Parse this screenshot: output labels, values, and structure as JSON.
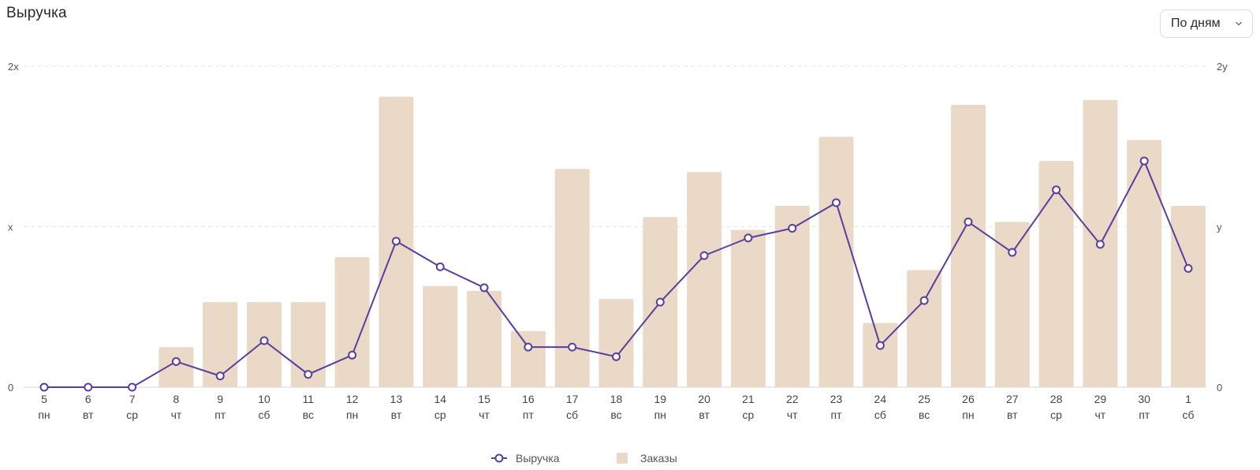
{
  "header": {
    "title": "Выручка",
    "period_select": {
      "value": "По дням"
    }
  },
  "chart_data": {
    "type": "bar",
    "categories": [
      "5",
      "6",
      "7",
      "8",
      "9",
      "10",
      "11",
      "12",
      "13",
      "14",
      "15",
      "16",
      "17",
      "18",
      "19",
      "20",
      "21",
      "22",
      "23",
      "24",
      "25",
      "26",
      "27",
      "28",
      "29",
      "30",
      "1"
    ],
    "weekdays": [
      "пн",
      "вт",
      "ср",
      "чт",
      "пт",
      "сб",
      "вс",
      "пн",
      "вт",
      "ср",
      "чт",
      "пт",
      "сб",
      "вс",
      "пн",
      "вт",
      "ср",
      "чт",
      "пт",
      "сб",
      "вс",
      "пн",
      "вт",
      "ср",
      "чт",
      "пт",
      "сб"
    ],
    "left_axis_labels": [
      "0",
      "x",
      "2x"
    ],
    "right_axis_labels": [
      "0",
      "y",
      "2y"
    ],
    "ylim": [
      0,
      2
    ],
    "series": [
      {
        "name": "Заказы",
        "kind": "bar",
        "color": "#e9d9c6",
        "values": [
          0,
          0,
          0,
          0.25,
          0.53,
          0.53,
          0.53,
          0.81,
          1.81,
          0.63,
          0.6,
          0.35,
          1.36,
          0.55,
          1.06,
          1.34,
          0.98,
          1.13,
          1.56,
          0.4,
          0.73,
          1.76,
          1.03,
          1.41,
          1.79,
          1.54,
          1.13
        ]
      },
      {
        "name": "Выручка",
        "kind": "line",
        "color": "#5a3e9e",
        "values": [
          0,
          0,
          0,
          0.16,
          0.07,
          0.29,
          0.08,
          0.2,
          0.91,
          0.75,
          0.62,
          0.25,
          0.25,
          0.19,
          0.53,
          0.82,
          0.93,
          0.99,
          1.15,
          0.26,
          0.54,
          1.03,
          0.84,
          1.23,
          0.89,
          1.41,
          0.74
        ]
      }
    ],
    "legend": {
      "placement": "bottom-center",
      "items": [
        "Выручка",
        "Заказы"
      ]
    },
    "grid": true
  }
}
